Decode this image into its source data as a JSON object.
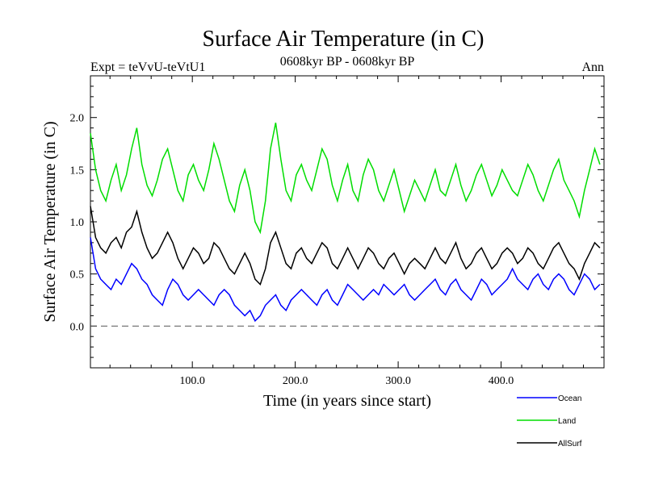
{
  "chart_data": {
    "type": "line",
    "title": "Surface Air Temperature (in C)",
    "subtitle_left": "Expt = teVvU-teVtU1",
    "subtitle_center": "0608kyr BP - 0608kyr BP",
    "subtitle_right": "Ann",
    "xlabel": "Time (in years since start)",
    "ylabel": "Surface Air Temperature (in C)",
    "xlim": [
      1,
      500
    ],
    "ylim": [
      -0.4,
      2.4
    ],
    "x_ticks": [
      100.0,
      200.0,
      300.0,
      400.0
    ],
    "x_tick_labels": [
      "100.0",
      "200.0",
      "300.0",
      "400.0"
    ],
    "y_ticks": [
      0.0,
      0.5,
      1.0,
      1.5,
      2.0
    ],
    "y_tick_labels": [
      "0.0",
      "0.5",
      "1.0",
      "1.5",
      "2.0"
    ],
    "zero_line": 0.0,
    "legend_position": "bottom-right, below plot",
    "series": [
      {
        "name": "Ocean",
        "color": "#0000ff",
        "x_step": 5,
        "x_start": 1,
        "values": [
          0.85,
          0.55,
          0.45,
          0.4,
          0.35,
          0.45,
          0.4,
          0.5,
          0.6,
          0.55,
          0.45,
          0.4,
          0.3,
          0.25,
          0.2,
          0.35,
          0.45,
          0.4,
          0.3,
          0.25,
          0.3,
          0.35,
          0.3,
          0.25,
          0.2,
          0.3,
          0.35,
          0.3,
          0.2,
          0.15,
          0.1,
          0.15,
          0.05,
          0.1,
          0.2,
          0.25,
          0.3,
          0.2,
          0.15,
          0.25,
          0.3,
          0.35,
          0.3,
          0.25,
          0.2,
          0.3,
          0.35,
          0.25,
          0.2,
          0.3,
          0.4,
          0.35,
          0.3,
          0.25,
          0.3,
          0.35,
          0.3,
          0.4,
          0.35,
          0.3,
          0.35,
          0.4,
          0.3,
          0.25,
          0.3,
          0.35,
          0.4,
          0.45,
          0.35,
          0.3,
          0.4,
          0.45,
          0.35,
          0.3,
          0.25,
          0.35,
          0.45,
          0.4,
          0.3,
          0.35,
          0.4,
          0.45,
          0.55,
          0.45,
          0.4,
          0.35,
          0.45,
          0.5,
          0.4,
          0.35,
          0.45,
          0.5,
          0.45,
          0.35,
          0.3,
          0.4,
          0.5,
          0.45,
          0.35,
          0.4
        ]
      },
      {
        "name": "Land",
        "color": "#00dd00",
        "x_step": 5,
        "x_start": 1,
        "values": [
          1.85,
          1.5,
          1.3,
          1.2,
          1.4,
          1.55,
          1.3,
          1.45,
          1.7,
          1.9,
          1.55,
          1.35,
          1.25,
          1.4,
          1.6,
          1.7,
          1.5,
          1.3,
          1.2,
          1.45,
          1.55,
          1.4,
          1.3,
          1.5,
          1.75,
          1.6,
          1.4,
          1.2,
          1.1,
          1.35,
          1.5,
          1.3,
          1.0,
          0.9,
          1.2,
          1.7,
          1.95,
          1.6,
          1.3,
          1.2,
          1.45,
          1.55,
          1.4,
          1.3,
          1.5,
          1.7,
          1.6,
          1.35,
          1.2,
          1.4,
          1.55,
          1.3,
          1.2,
          1.45,
          1.6,
          1.5,
          1.3,
          1.2,
          1.35,
          1.5,
          1.3,
          1.1,
          1.25,
          1.4,
          1.3,
          1.2,
          1.35,
          1.5,
          1.3,
          1.25,
          1.4,
          1.55,
          1.35,
          1.2,
          1.3,
          1.45,
          1.55,
          1.4,
          1.25,
          1.35,
          1.5,
          1.4,
          1.3,
          1.25,
          1.4,
          1.55,
          1.45,
          1.3,
          1.2,
          1.35,
          1.5,
          1.6,
          1.4,
          1.3,
          1.2,
          1.05,
          1.3,
          1.5,
          1.7,
          1.55
        ]
      },
      {
        "name": "AllSurf",
        "color": "#000000",
        "x_step": 5,
        "x_start": 1,
        "values": [
          1.15,
          0.85,
          0.75,
          0.7,
          0.8,
          0.85,
          0.75,
          0.9,
          0.95,
          1.1,
          0.9,
          0.75,
          0.65,
          0.7,
          0.8,
          0.9,
          0.8,
          0.65,
          0.55,
          0.65,
          0.75,
          0.7,
          0.6,
          0.65,
          0.8,
          0.75,
          0.65,
          0.55,
          0.5,
          0.6,
          0.7,
          0.6,
          0.45,
          0.4,
          0.55,
          0.8,
          0.9,
          0.75,
          0.6,
          0.55,
          0.7,
          0.75,
          0.65,
          0.6,
          0.7,
          0.8,
          0.75,
          0.6,
          0.55,
          0.65,
          0.75,
          0.65,
          0.55,
          0.65,
          0.75,
          0.7,
          0.6,
          0.55,
          0.65,
          0.7,
          0.6,
          0.5,
          0.6,
          0.65,
          0.6,
          0.55,
          0.65,
          0.75,
          0.65,
          0.6,
          0.7,
          0.8,
          0.65,
          0.55,
          0.6,
          0.7,
          0.75,
          0.65,
          0.55,
          0.6,
          0.7,
          0.75,
          0.7,
          0.6,
          0.65,
          0.75,
          0.7,
          0.6,
          0.55,
          0.65,
          0.75,
          0.8,
          0.7,
          0.6,
          0.55,
          0.45,
          0.6,
          0.7,
          0.8,
          0.75
        ]
      }
    ]
  }
}
